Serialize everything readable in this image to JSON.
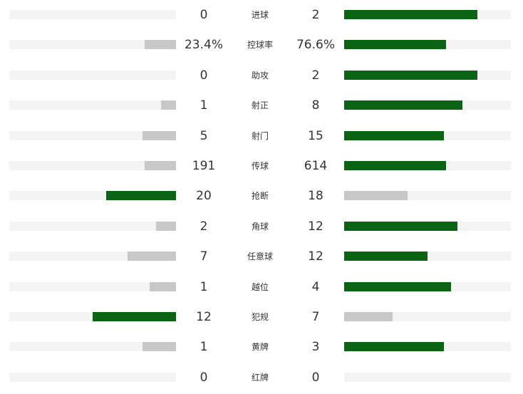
{
  "colors": {
    "leader": "#0a6414",
    "trailer": "#c8c8c8",
    "track": "#f4f4f4"
  },
  "stats": [
    {
      "label": "进球",
      "home": "0",
      "away": "2",
      "home_fraction": 0.0,
      "away_fraction": 0.8,
      "leader": "away"
    },
    {
      "label": "控球率",
      "home": "23.4%",
      "away": "76.6%",
      "home_fraction": 0.19,
      "away_fraction": 0.61,
      "leader": "away"
    },
    {
      "label": "助攻",
      "home": "0",
      "away": "2",
      "home_fraction": 0.0,
      "away_fraction": 0.8,
      "leader": "away"
    },
    {
      "label": "射正",
      "home": "1",
      "away": "8",
      "home_fraction": 0.09,
      "away_fraction": 0.71,
      "leader": "away"
    },
    {
      "label": "射门",
      "home": "5",
      "away": "15",
      "home_fraction": 0.2,
      "away_fraction": 0.6,
      "leader": "away"
    },
    {
      "label": "传球",
      "home": "191",
      "away": "614",
      "home_fraction": 0.19,
      "away_fraction": 0.61,
      "leader": "away"
    },
    {
      "label": "抢断",
      "home": "20",
      "away": "18",
      "home_fraction": 0.42,
      "away_fraction": 0.38,
      "leader": "home"
    },
    {
      "label": "角球",
      "home": "2",
      "away": "12",
      "home_fraction": 0.12,
      "away_fraction": 0.68,
      "leader": "away"
    },
    {
      "label": "任意球",
      "home": "7",
      "away": "12",
      "home_fraction": 0.29,
      "away_fraction": 0.5,
      "leader": "away"
    },
    {
      "label": "越位",
      "home": "1",
      "away": "4",
      "home_fraction": 0.16,
      "away_fraction": 0.64,
      "leader": "away"
    },
    {
      "label": "犯规",
      "home": "12",
      "away": "7",
      "home_fraction": 0.5,
      "away_fraction": 0.29,
      "leader": "home"
    },
    {
      "label": "黄牌",
      "home": "1",
      "away": "3",
      "home_fraction": 0.2,
      "away_fraction": 0.6,
      "leader": "away"
    },
    {
      "label": "红牌",
      "home": "0",
      "away": "0",
      "home_fraction": 0.0,
      "away_fraction": 0.0,
      "leader": "none"
    }
  ]
}
